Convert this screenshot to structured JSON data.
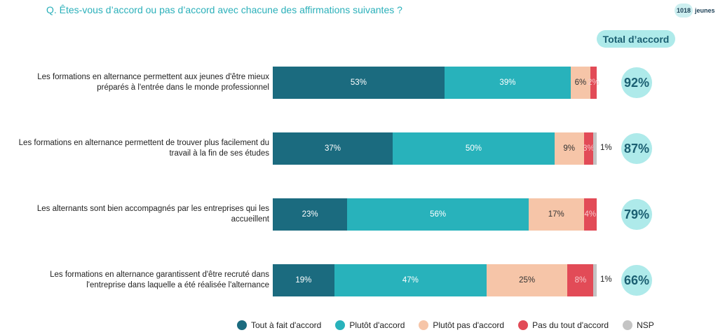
{
  "chart_data": {
    "type": "stacked-bar-horizontal",
    "title": "Q. Êtes-vous d’accord ou pas d’accord avec chacune des affirmations suivantes ?",
    "badge": {
      "number": "1018",
      "text": "jeunes"
    },
    "categories": [
      "Les formations en alternance permettent aux jeunes d'être mieux préparés à l'entrée dans le monde professionnel",
      "Les formations en alternance permettent de trouver plus facilement du travail à la fin de ses études",
      "Les alternants sont bien accompagnés par les entreprises qui les accueillent",
      "Les formations en alternance garantissent d'être recruté dans l'entreprise dans laquelle a été réalisée l'alternance"
    ],
    "xlim": [
      0,
      100
    ],
    "series": [
      {
        "name": "Tout à fait d'accord",
        "color": "#1b6b7f",
        "values": [
          53,
          37,
          23,
          19
        ],
        "value_labels": [
          "53%",
          "37%",
          "23%",
          "19%"
        ]
      },
      {
        "name": "Plutôt d'accord",
        "color": "#28b2bb",
        "values": [
          39,
          50,
          56,
          47
        ],
        "value_labels": [
          "39%",
          "50%",
          "56%",
          "47%"
        ]
      },
      {
        "name": "Plutôt pas d'accord",
        "color": "#f6c5a8",
        "values": [
          6,
          9,
          17,
          25
        ],
        "value_labels": [
          "6%",
          "9%",
          "17%",
          "25%"
        ]
      },
      {
        "name": "Pas du tout d'accord",
        "color": "#e24b57",
        "values": [
          2,
          3,
          4,
          8
        ],
        "value_labels": [
          "2%",
          "3%",
          "4%",
          "8%"
        ]
      },
      {
        "name": "NSP",
        "color": "#c4c4c4",
        "values": [
          null,
          1,
          null,
          1
        ],
        "value_labels": [
          null,
          "1%",
          null,
          "1%"
        ]
      }
    ],
    "total": {
      "label": "Total d’accord",
      "values": [
        92,
        87,
        79,
        66
      ],
      "value_labels": [
        "92%",
        "87%",
        "79%",
        "66%"
      ]
    }
  }
}
